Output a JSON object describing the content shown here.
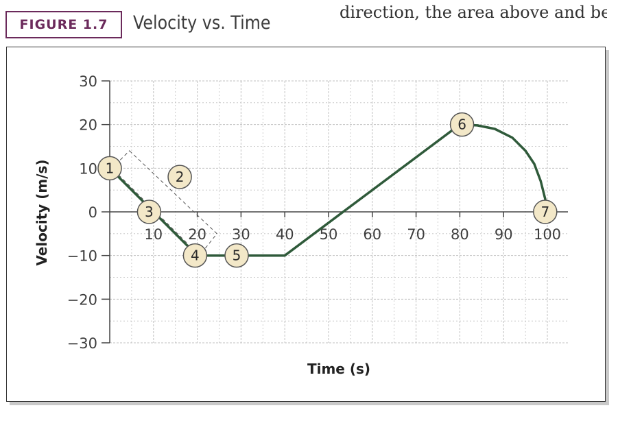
{
  "header": {
    "figure_label": "FIGURE 1.7",
    "figure_title": "Velocity vs. Time",
    "body_text": "direction, the area above and bei"
  },
  "colors": {
    "accent": "#6b2a5b",
    "line": "#2f5a3a",
    "marker_fill": "#f3e8c8",
    "grid": "#c0c0c0"
  },
  "chart_data": {
    "type": "line",
    "title": "Velocity vs. Time",
    "xlabel": "Time (s)",
    "ylabel": "Velocity (m/s)",
    "xlim": [
      0,
      100
    ],
    "ylim": [
      -30,
      30
    ],
    "x_ticks": [
      10,
      20,
      30,
      40,
      50,
      60,
      70,
      80,
      90,
      100
    ],
    "y_ticks": [
      30,
      20,
      10,
      0,
      -10,
      -20,
      -30
    ],
    "grid": true,
    "series": [
      {
        "points": [
          [
            0,
            10
          ],
          [
            10,
            0
          ],
          [
            20,
            -10
          ],
          [
            30,
            -10
          ],
          [
            40,
            -10
          ],
          [
            80,
            20
          ],
          [
            84,
            19.8
          ],
          [
            88,
            19
          ],
          [
            92,
            17
          ],
          [
            95,
            14
          ],
          [
            97,
            11
          ],
          [
            98.5,
            7
          ],
          [
            99.5,
            3
          ],
          [
            100,
            0
          ]
        ]
      }
    ],
    "markers": [
      {
        "label": "1",
        "x": 0,
        "y": 10
      },
      {
        "label": "2",
        "x": 16,
        "y": 8
      },
      {
        "label": "3",
        "x": 9,
        "y": 0
      },
      {
        "label": "4",
        "x": 19.5,
        "y": -10
      },
      {
        "label": "5",
        "x": 29,
        "y": -10
      },
      {
        "label": "6",
        "x": 80.5,
        "y": 20
      },
      {
        "label": "7",
        "x": 99.5,
        "y": 0
      }
    ],
    "dashed_box": [
      [
        4.5,
        14
      ],
      [
        24.5,
        -5
      ],
      [
        20.5,
        -10
      ],
      [
        0.5,
        10
      ]
    ]
  }
}
